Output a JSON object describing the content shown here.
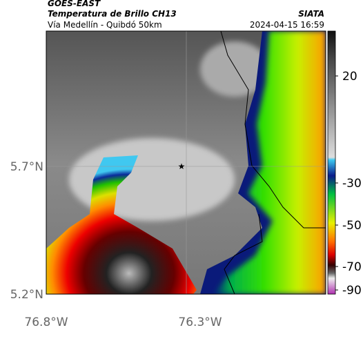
{
  "header": {
    "source": "GOES-EAST",
    "title": "Temperatura de Brillo CH13",
    "subtitle": "Vía Medellín - Quibdó 50km",
    "credit": "SIATA",
    "timestamp": "2024-04-15 16:59"
  },
  "map": {
    "lat_ticks": [
      "5.7°N",
      "5.2°N"
    ],
    "lon_ticks": [
      "76.8°W",
      "76.3°W"
    ]
  },
  "colorbar": {
    "ticks": [
      20,
      -30,
      -50,
      -70,
      -90
    ]
  }
}
